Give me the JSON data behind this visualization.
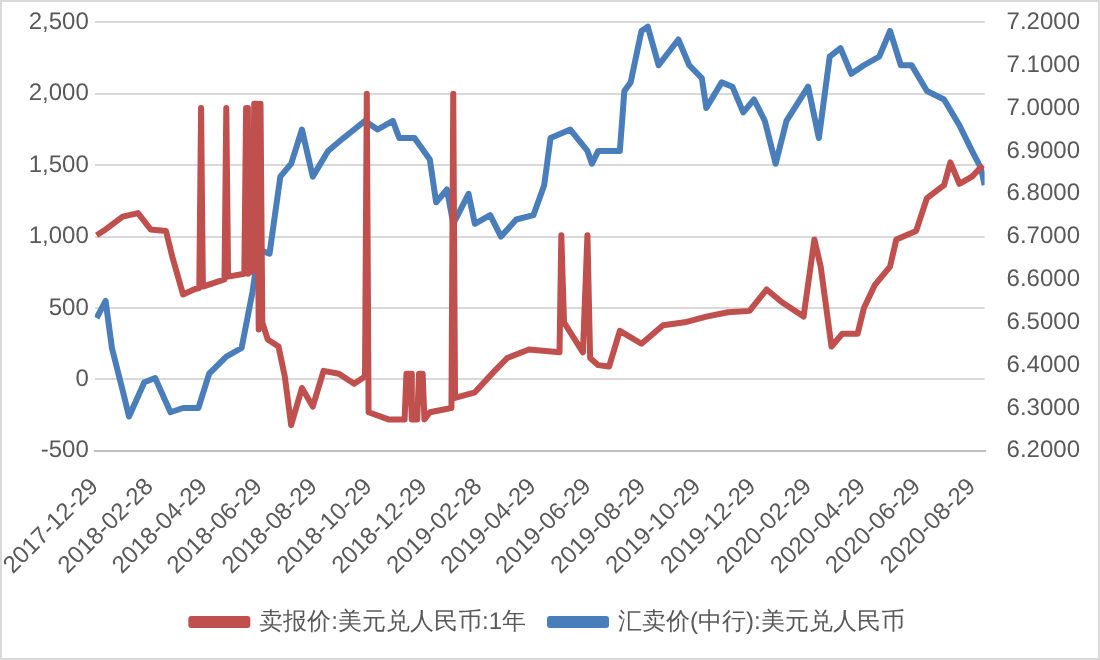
{
  "chart_data": {
    "type": "line",
    "legend": "bottom",
    "grid": "y",
    "marker": "none",
    "line_style": "solid",
    "xlim": [
      "2017-12-29",
      "2020-09-12"
    ],
    "xticks": [
      "2017-12-29",
      "2018-02-28",
      "2018-04-29",
      "2018-06-29",
      "2018-08-29",
      "2018-10-29",
      "2018-12-29",
      "2019-02-28",
      "2019-04-29",
      "2019-06-29",
      "2019-08-29",
      "2019-10-29",
      "2019-12-29",
      "2020-02-29",
      "2020-04-29",
      "2020-06-29",
      "2020-08-29"
    ],
    "ylim": [
      -500,
      2500
    ],
    "yticks": [
      {
        "value": -500,
        "label": "-500"
      },
      0,
      {
        "value": 500,
        "label": "500"
      },
      {
        "value": 1000,
        "label": "1,000"
      },
      {
        "value": 1500,
        "label": "1,500"
      },
      {
        "value": 2000,
        "label": "2,000"
      },
      {
        "value": 2500,
        "label": "2,500"
      }
    ],
    "y2lim": [
      6.2,
      7.2
    ],
    "y2ticks": [
      {
        "value": 6.2,
        "label": "6.2000"
      },
      {
        "value": 6.3,
        "label": "6.3000"
      },
      {
        "value": 6.4,
        "label": "6.4000"
      },
      {
        "value": 6.5,
        "label": "6.5000"
      },
      {
        "value": 6.6,
        "label": "6.6000"
      },
      {
        "value": 6.7,
        "label": "6.7000"
      },
      {
        "value": 6.8,
        "label": "6.8000"
      },
      {
        "value": 6.9,
        "label": "6.9000"
      },
      {
        "value": 7.0,
        "label": "7.0000"
      },
      {
        "value": 7.1,
        "label": "7.1000"
      },
      {
        "value": 7.2,
        "label": "7.2000"
      }
    ],
    "series": [
      {
        "name": "卖报价:美元兑人民币:1年",
        "color": "#c0504d",
        "x": [
          "2017-12-31",
          "2018-01-10",
          "2018-01-29",
          "2018-02-15",
          "2018-03-01",
          "2018-03-18",
          "2018-03-25",
          "2018-04-06",
          "2018-04-18",
          "2018-04-24",
          "2018-04-26",
          "2018-04-28",
          "2018-05-22",
          "2018-05-24",
          "2018-05-26",
          "2018-06-13",
          "2018-06-15",
          "2018-06-17",
          "2018-06-22",
          "2018-06-24",
          "2018-06-27",
          "2018-06-29",
          "2018-07-01",
          "2018-07-03",
          "2018-07-09",
          "2018-07-21",
          "2018-07-28",
          "2018-08-04",
          "2018-08-16",
          "2018-08-28",
          "2018-09-09",
          "2018-09-26",
          "2018-10-13",
          "2018-10-25",
          "2018-10-27",
          "2018-10-29",
          "2018-11-20",
          "2018-12-02",
          "2018-12-08",
          "2018-12-10",
          "2018-12-14",
          "2018-12-16",
          "2018-12-22",
          "2018-12-24",
          "2018-12-28",
          "2018-12-30",
          "2019-01-05",
          "2019-01-29",
          "2019-01-31",
          "2019-02-02",
          "2019-02-24",
          "2019-03-18",
          "2019-04-01",
          "2019-04-25",
          "2019-05-29",
          "2019-05-31",
          "2019-06-03",
          "2019-06-24",
          "2019-06-29",
          "2019-07-02",
          "2019-07-11",
          "2019-07-23",
          "2019-08-04",
          "2019-08-28",
          "2019-09-21",
          "2019-10-15",
          "2019-11-08",
          "2019-12-02",
          "2019-12-26",
          "2020-01-14",
          "2020-01-31",
          "2020-02-24",
          "2020-03-07",
          "2020-03-14",
          "2020-03-26",
          "2020-04-07",
          "2020-04-24",
          "2020-05-01",
          "2020-05-13",
          "2020-05-30",
          "2020-06-06",
          "2020-06-28",
          "2020-07-10",
          "2020-07-29",
          "2020-08-05",
          "2020-08-15",
          "2020-08-29",
          "2020-09-10"
        ],
        "values": [
          1010,
          1050,
          1140,
          1165,
          1050,
          1040,
          860,
          595,
          630,
          640,
          1900,
          650,
          700,
          1900,
          720,
          740,
          1900,
          740,
          760,
          1930,
          1930,
          350,
          1930,
          400,
          280,
          230,
          20,
          -320,
          -60,
          -190,
          60,
          40,
          -30,
          20,
          2000,
          -230,
          -280,
          -280,
          -280,
          40,
          40,
          -280,
          -280,
          40,
          40,
          -280,
          -230,
          -200,
          2000,
          -130,
          -90,
          60,
          150,
          210,
          190,
          1010,
          400,
          190,
          1010,
          150,
          100,
          90,
          340,
          250,
          380,
          400,
          440,
          470,
          480,
          630,
          540,
          440,
          980,
          790,
          230,
          320,
          320,
          500,
          660,
          790,
          980,
          1040,
          1270,
          1360,
          1520,
          1370,
          1420,
          1500
        ]
      },
      {
        "name": "汇卖价(中行):美元兑人民币",
        "color": "#4a7ebb",
        "axis": "y2",
        "x": [
          "2017-12-31",
          "2018-01-10",
          "2018-01-17",
          "2018-01-29",
          "2018-02-05",
          "2018-02-22",
          "2018-03-06",
          "2018-03-23",
          "2018-04-06",
          "2018-04-23",
          "2018-05-05",
          "2018-05-24",
          "2018-06-10",
          "2018-06-22",
          "2018-06-29",
          "2018-07-11",
          "2018-07-23",
          "2018-08-04",
          "2018-08-16",
          "2018-08-28",
          "2018-09-14",
          "2018-10-01",
          "2018-10-13",
          "2018-10-25",
          "2018-11-08",
          "2018-11-25",
          "2018-12-02",
          "2018-12-19",
          "2019-01-05",
          "2019-01-12",
          "2019-01-24",
          "2019-01-31",
          "2019-02-17",
          "2019-02-24",
          "2019-03-13",
          "2019-03-25",
          "2019-04-11",
          "2019-04-30",
          "2019-05-12",
          "2019-05-19",
          "2019-06-10",
          "2019-06-29",
          "2019-07-04",
          "2019-07-11",
          "2019-08-04",
          "2019-08-09",
          "2019-08-16",
          "2019-08-28",
          "2019-09-04",
          "2019-09-16",
          "2019-10-08",
          "2019-10-20",
          "2019-11-03",
          "2019-11-08",
          "2019-11-25",
          "2019-12-07",
          "2019-12-19",
          "2019-12-31",
          "2020-01-12",
          "2020-01-24",
          "2020-02-05",
          "2020-02-17",
          "2020-02-29",
          "2020-03-12",
          "2020-03-24",
          "2020-04-05",
          "2020-04-17",
          "2020-05-01",
          "2020-05-18",
          "2020-05-30",
          "2020-06-11",
          "2020-06-23",
          "2020-07-10",
          "2020-07-29",
          "2020-08-15",
          "2020-08-29",
          "2020-09-08",
          "2020-09-12"
        ],
        "values": [
          6.51,
          6.55,
          6.44,
          6.34,
          6.28,
          6.36,
          6.37,
          6.29,
          6.3,
          6.3,
          6.38,
          6.42,
          6.44,
          6.57,
          6.67,
          6.66,
          6.84,
          6.87,
          6.95,
          6.84,
          6.9,
          6.93,
          6.95,
          6.97,
          6.95,
          6.97,
          6.93,
          6.93,
          6.88,
          6.78,
          6.81,
          6.73,
          6.8,
          6.73,
          6.75,
          6.7,
          6.74,
          6.75,
          6.82,
          6.93,
          6.95,
          6.9,
          6.87,
          6.9,
          6.9,
          7.04,
          7.06,
          7.18,
          7.19,
          7.1,
          7.16,
          7.1,
          7.07,
          7.0,
          7.06,
          7.05,
          6.99,
          7.02,
          6.97,
          6.87,
          6.97,
          7.01,
          7.05,
          6.93,
          7.12,
          7.14,
          7.08,
          7.1,
          7.12,
          7.18,
          7.1,
          7.1,
          7.04,
          7.02,
          6.96,
          6.9,
          6.86,
          6.82
        ]
      }
    ]
  }
}
